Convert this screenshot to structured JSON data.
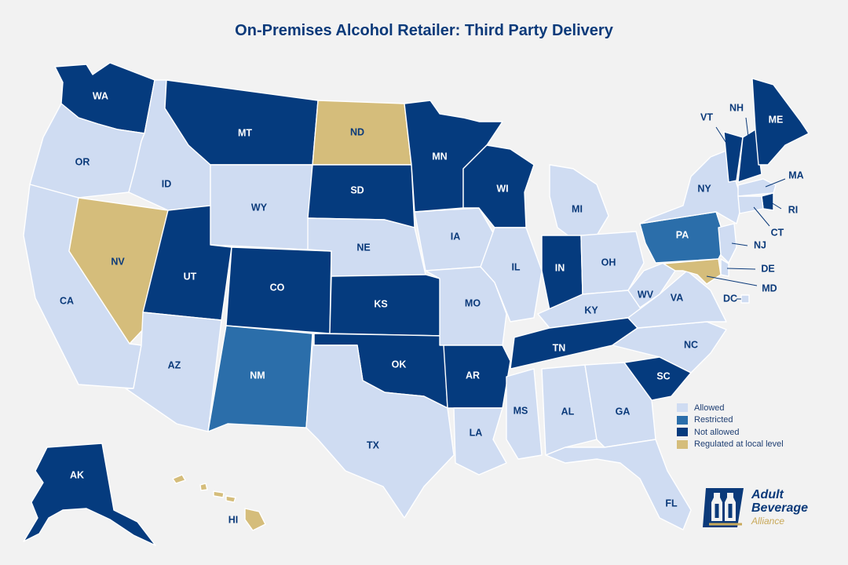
{
  "title": "On-Premises Alcohol Retailer: Third Party Delivery",
  "colors": {
    "Allowed": "#cfdcf2",
    "Restricted": "#2b6eaa",
    "Not allowed": "#053b7e",
    "Regulated at local level": "#d5bd7b"
  },
  "legend": [
    {
      "label": "Allowed",
      "status": "Allowed"
    },
    {
      "label": "Restricted",
      "status": "Restricted"
    },
    {
      "label": "Not allowed",
      "status": "Not allowed"
    },
    {
      "label": "Regulated at local level",
      "status": "Regulated at local level"
    }
  ],
  "states": [
    {
      "abbr": "WA",
      "status": "Not allowed"
    },
    {
      "abbr": "OR",
      "status": "Allowed"
    },
    {
      "abbr": "CA",
      "status": "Allowed"
    },
    {
      "abbr": "ID",
      "status": "Allowed"
    },
    {
      "abbr": "NV",
      "status": "Regulated at local level"
    },
    {
      "abbr": "MT",
      "status": "Not allowed"
    },
    {
      "abbr": "WY",
      "status": "Allowed"
    },
    {
      "abbr": "UT",
      "status": "Not allowed"
    },
    {
      "abbr": "AZ",
      "status": "Allowed"
    },
    {
      "abbr": "CO",
      "status": "Not allowed"
    },
    {
      "abbr": "NM",
      "status": "Restricted"
    },
    {
      "abbr": "ND",
      "status": "Regulated at local level"
    },
    {
      "abbr": "SD",
      "status": "Not allowed"
    },
    {
      "abbr": "NE",
      "status": "Allowed"
    },
    {
      "abbr": "KS",
      "status": "Not allowed"
    },
    {
      "abbr": "OK",
      "status": "Not allowed"
    },
    {
      "abbr": "TX",
      "status": "Allowed"
    },
    {
      "abbr": "MN",
      "status": "Not allowed"
    },
    {
      "abbr": "IA",
      "status": "Allowed"
    },
    {
      "abbr": "MO",
      "status": "Allowed"
    },
    {
      "abbr": "AR",
      "status": "Not allowed"
    },
    {
      "abbr": "LA",
      "status": "Allowed"
    },
    {
      "abbr": "WI",
      "status": "Not allowed"
    },
    {
      "abbr": "IL",
      "status": "Allowed"
    },
    {
      "abbr": "MI",
      "status": "Allowed"
    },
    {
      "abbr": "IN",
      "status": "Not allowed"
    },
    {
      "abbr": "OH",
      "status": "Allowed"
    },
    {
      "abbr": "KY",
      "status": "Allowed"
    },
    {
      "abbr": "TN",
      "status": "Not allowed"
    },
    {
      "abbr": "MS",
      "status": "Allowed"
    },
    {
      "abbr": "AL",
      "status": "Allowed"
    },
    {
      "abbr": "GA",
      "status": "Allowed"
    },
    {
      "abbr": "FL",
      "status": "Allowed"
    },
    {
      "abbr": "SC",
      "status": "Not allowed"
    },
    {
      "abbr": "NC",
      "status": "Allowed"
    },
    {
      "abbr": "VA",
      "status": "Allowed"
    },
    {
      "abbr": "WV",
      "status": "Allowed"
    },
    {
      "abbr": "PA",
      "status": "Restricted"
    },
    {
      "abbr": "NY",
      "status": "Allowed"
    },
    {
      "abbr": "VT",
      "status": "Not allowed"
    },
    {
      "abbr": "NH",
      "status": "Not allowed"
    },
    {
      "abbr": "ME",
      "status": "Not allowed"
    },
    {
      "abbr": "MA",
      "status": "Allowed"
    },
    {
      "abbr": "RI",
      "status": "Not allowed"
    },
    {
      "abbr": "CT",
      "status": "Allowed"
    },
    {
      "abbr": "NJ",
      "status": "Allowed"
    },
    {
      "abbr": "DE",
      "status": "Allowed"
    },
    {
      "abbr": "MD",
      "status": "Regulated at local level"
    },
    {
      "abbr": "DC",
      "status": "Allowed"
    },
    {
      "abbr": "AK",
      "status": "Not allowed"
    },
    {
      "abbr": "HI",
      "status": "Regulated at local level"
    }
  ],
  "logo": {
    "line1": "Adult",
    "line2": "Beverage",
    "line3": "Alliance"
  }
}
